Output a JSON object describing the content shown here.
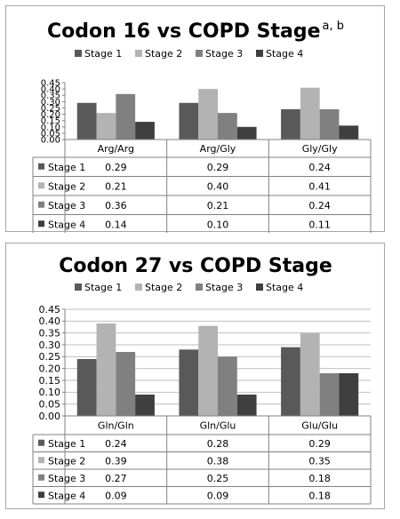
{
  "chart_data": [
    {
      "type": "bar",
      "title": "Codon 16 vs COPD Stage",
      "title_superscript": "a, b",
      "categories": [
        "Arg/Arg",
        "Arg/Gly",
        "Gly/Gly"
      ],
      "series": [
        {
          "name": "Stage 1",
          "values": [
            0.29,
            0.29,
            0.24
          ],
          "color": "#595959"
        },
        {
          "name": "Stage 2",
          "values": [
            0.21,
            0.4,
            0.41
          ],
          "color": "#b3b3b3"
        },
        {
          "name": "Stage 3",
          "values": [
            0.36,
            0.21,
            0.24
          ],
          "color": "#808080"
        },
        {
          "name": "Stage 4",
          "values": [
            0.14,
            0.1,
            0.11
          ],
          "color": "#3f3f3f"
        }
      ],
      "table_values": [
        [
          "0.29",
          "0.29",
          "0.24"
        ],
        [
          "0.21",
          "0.40",
          "0.41"
        ],
        [
          "0.36",
          "0.21",
          "0.24"
        ],
        [
          "0.14",
          "0.10",
          "0.11"
        ]
      ],
      "y_ticks": [
        "0.00",
        "0.05",
        "0.10",
        "0.15",
        "0.20",
        "0.25",
        "0.30",
        "0.35",
        "0.40",
        "0.45"
      ],
      "ylim": [
        0,
        0.45
      ],
      "legend": "top",
      "grid": false,
      "data_table": true
    },
    {
      "type": "bar",
      "title": "Codon 27 vs COPD Stage",
      "categories": [
        "Gln/Gln",
        "Gln/Glu",
        "Glu/Glu"
      ],
      "series": [
        {
          "name": "Stage 1",
          "values": [
            0.24,
            0.28,
            0.29
          ],
          "color": "#595959"
        },
        {
          "name": "Stage 2",
          "values": [
            0.39,
            0.38,
            0.35
          ],
          "color": "#b3b3b3"
        },
        {
          "name": "Stage 3",
          "values": [
            0.27,
            0.25,
            0.18
          ],
          "color": "#808080"
        },
        {
          "name": "Stage 4",
          "values": [
            0.09,
            0.09,
            0.18
          ],
          "color": "#3f3f3f"
        }
      ],
      "table_values": [
        [
          "0.24",
          "0.28",
          "0.29"
        ],
        [
          "0.39",
          "0.38",
          "0.35"
        ],
        [
          "0.27",
          "0.25",
          "0.18"
        ],
        [
          "0.09",
          "0.09",
          "0.18"
        ]
      ],
      "y_ticks": [
        "0.00",
        "0.05",
        "0.10",
        "0.15",
        "0.20",
        "0.25",
        "0.30",
        "0.35",
        "0.40",
        "0.45"
      ],
      "ylim": [
        0,
        0.45
      ],
      "legend": "top",
      "grid": true,
      "data_table": true
    }
  ]
}
